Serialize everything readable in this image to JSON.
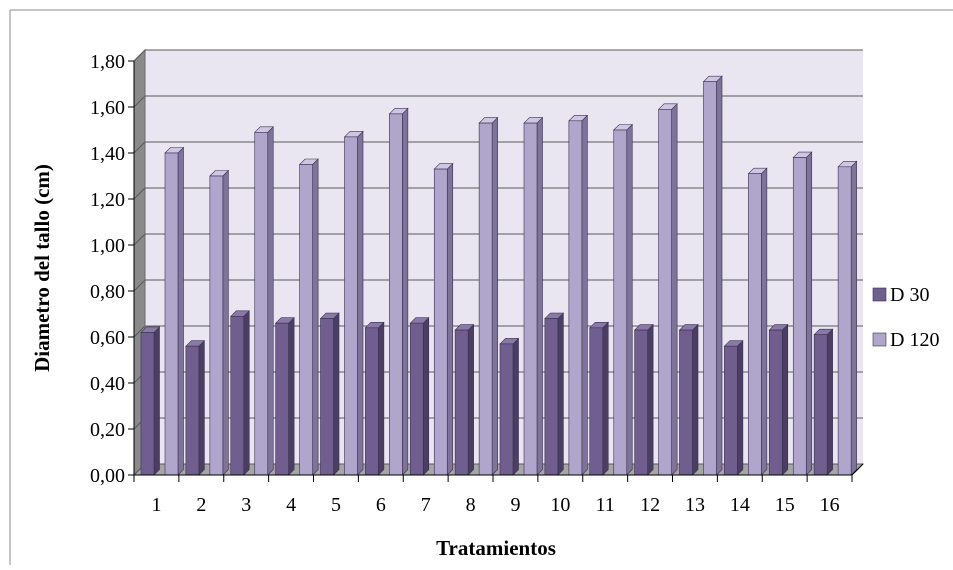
{
  "colors": {
    "d30_front": "#6F5E8E",
    "d30_side": "#4A3E63",
    "d30_top": "#8A79A8",
    "d120_front": "#B0A5CB",
    "d120_side": "#7E7399",
    "d120_top": "#CFC6E3",
    "back_wall": "#E9E6F1",
    "floor": "#A6A6A6",
    "gridline": "#595959"
  },
  "chart_data": {
    "type": "bar",
    "three_d": true,
    "xlabel": "Tratamientos",
    "ylabel": "Diametro del tallo (cm)",
    "categories": [
      "1",
      "2",
      "3",
      "4",
      "5",
      "6",
      "7",
      "8",
      "9",
      "10",
      "11",
      "12",
      "13",
      "14",
      "15",
      "16"
    ],
    "ylim": [
      0,
      1.8
    ],
    "yticks": [
      "0,00",
      "0,20",
      "0,40",
      "0,60",
      "0,80",
      "1,00",
      "1,20",
      "1,40",
      "1,60",
      "1,80"
    ],
    "grid": true,
    "legend": "right",
    "series": [
      {
        "name": "D 30",
        "values": [
          0.62,
          0.56,
          0.69,
          0.66,
          0.68,
          0.64,
          0.66,
          0.63,
          0.57,
          0.68,
          0.64,
          0.63,
          0.63,
          0.56,
          0.63,
          0.61
        ]
      },
      {
        "name": "D 120",
        "values": [
          1.4,
          1.3,
          1.49,
          1.35,
          1.47,
          1.57,
          1.33,
          1.53,
          1.53,
          1.54,
          1.5,
          1.59,
          1.71,
          1.31,
          1.38,
          1.34
        ]
      }
    ]
  }
}
